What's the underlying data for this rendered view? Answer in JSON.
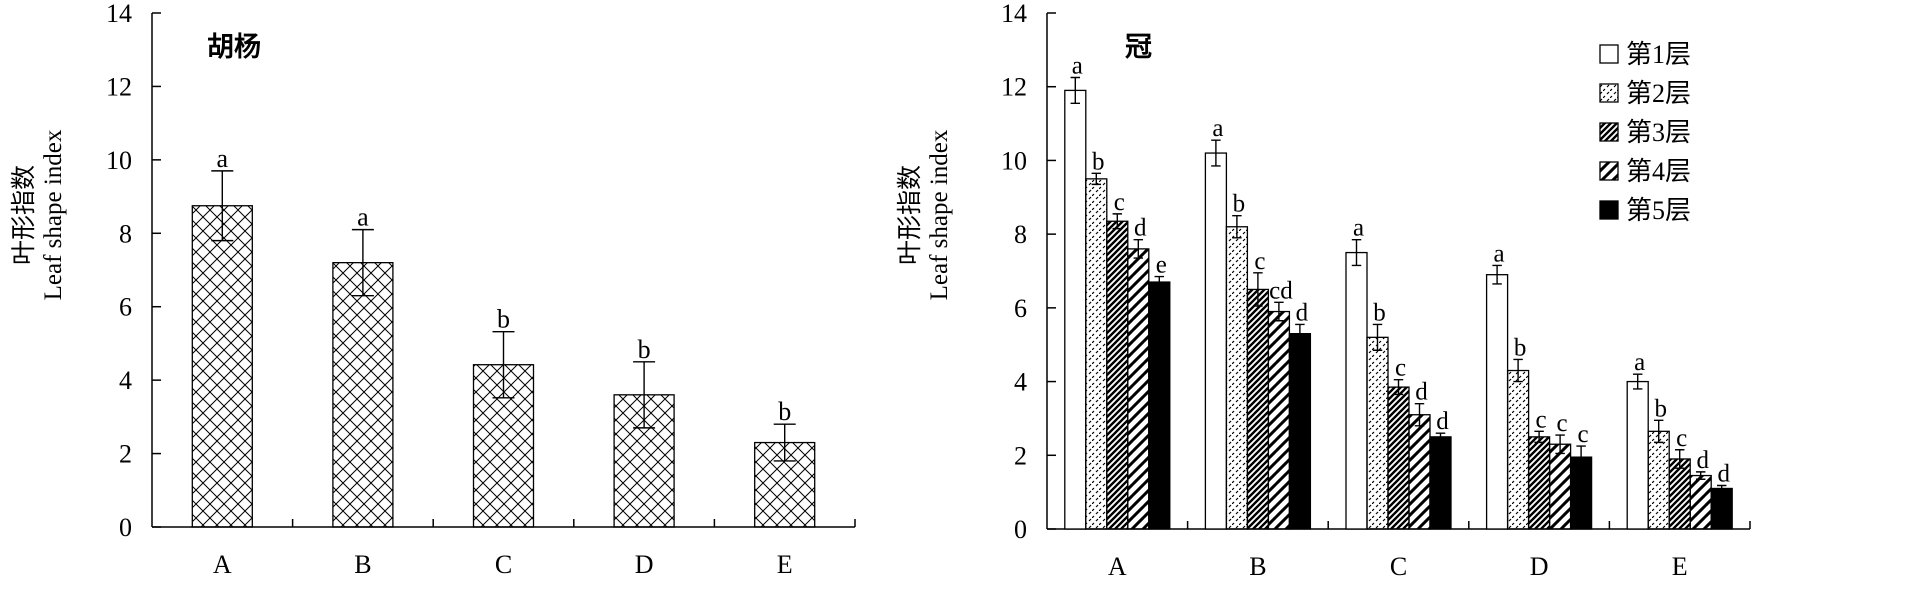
{
  "chart_data": [
    {
      "type": "bar",
      "title": "胡杨",
      "ylabel_cn": "叶形指数",
      "ylabel_en": "Leaf shape index",
      "ylim": [
        0,
        14
      ],
      "yticks": [
        "0",
        "2",
        "4",
        "6",
        "8",
        "10",
        "12",
        "14"
      ],
      "categories": [
        "A",
        "B",
        "C",
        "D",
        "E"
      ],
      "pattern": "crosshatch",
      "values": [
        8.75,
        7.2,
        4.42,
        3.6,
        2.3
      ],
      "errors": [
        0.95,
        0.9,
        0.9,
        0.9,
        0.5
      ],
      "letters": [
        "a",
        "a",
        "b",
        "b",
        "b"
      ]
    },
    {
      "type": "bar",
      "title": "冠",
      "ylabel_cn": "叶形指数",
      "ylabel_en": "Leaf shape index",
      "ylim": [
        0,
        14
      ],
      "yticks": [
        "0",
        "2",
        "4",
        "6",
        "8",
        "10",
        "12",
        "14"
      ],
      "categories": [
        "A",
        "B",
        "C",
        "D",
        "E"
      ],
      "legend_position": "top-right",
      "series": [
        {
          "name": "第1层",
          "pattern": "open",
          "values": [
            11.9,
            10.2,
            7.5,
            6.9,
            4.0
          ],
          "errors": [
            0.35,
            0.35,
            0.35,
            0.25,
            0.2
          ],
          "letters": [
            "a",
            "a",
            "a",
            "a",
            "a"
          ]
        },
        {
          "name": "第2层",
          "pattern": "dotted",
          "values": [
            9.5,
            8.2,
            5.2,
            4.3,
            2.65
          ],
          "errors": [
            0.15,
            0.3,
            0.35,
            0.3,
            0.3
          ],
          "letters": [
            "b",
            "b",
            "b",
            "b",
            "b"
          ]
        },
        {
          "name": "第3层",
          "pattern": "dense-diagonal",
          "values": [
            8.35,
            6.5,
            3.85,
            2.5,
            1.9
          ],
          "errors": [
            0.2,
            0.45,
            0.2,
            0.15,
            0.25
          ],
          "letters": [
            "c",
            "c",
            "c",
            "c",
            "c"
          ]
        },
        {
          "name": "第4层",
          "pattern": "wide-diagonal",
          "values": [
            7.6,
            5.9,
            3.1,
            2.3,
            1.45
          ],
          "errors": [
            0.25,
            0.25,
            0.3,
            0.25,
            0.1
          ],
          "letters": [
            "d",
            "cd",
            "d",
            "c",
            "d"
          ]
        },
        {
          "name": "第5层",
          "pattern": "solid",
          "values": [
            6.7,
            5.3,
            2.5,
            1.95,
            1.1
          ],
          "errors": [
            0.15,
            0.25,
            0.1,
            0.3,
            0.08
          ],
          "letters": [
            "e",
            "d",
            "d",
            "c",
            "d"
          ]
        }
      ]
    }
  ]
}
